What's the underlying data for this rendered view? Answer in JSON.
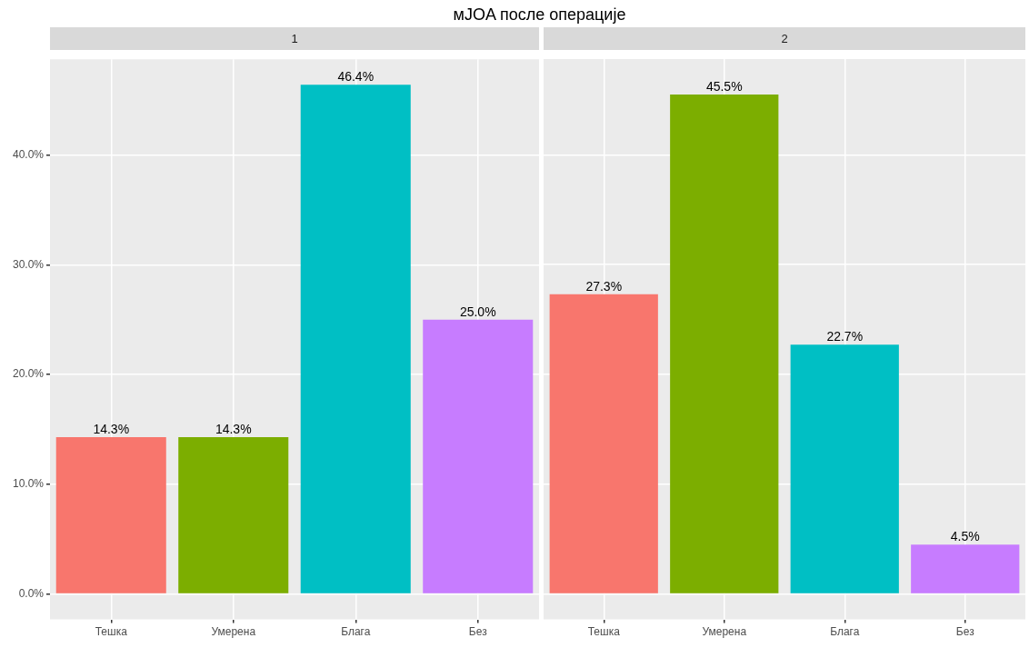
{
  "chart_data": [
    {
      "type": "bar",
      "title": "мJOA после операције",
      "subtitle": "1",
      "categories": [
        "Тешка",
        "Умерена",
        "Блага",
        "Без"
      ],
      "values": [
        14.3,
        14.3,
        46.4,
        25.0
      ],
      "colors": [
        "#f8766d",
        "#7cae00",
        "#00bfc4",
        "#c77cff"
      ],
      "value_labels": [
        "14.3%",
        "14.3%",
        "46.4%",
        "25.0%"
      ],
      "ylim": [
        -2.32,
        48.72
      ],
      "yticks": [
        {
          "value": 0,
          "label": "0.0%"
        },
        {
          "value": 10,
          "label": "10.0%"
        },
        {
          "value": 20,
          "label": "20.0%"
        },
        {
          "value": 30,
          "label": "30.0%"
        },
        {
          "value": 40,
          "label": "40.0%"
        }
      ],
      "grid": true
    },
    {
      "type": "bar",
      "subtitle": "2",
      "categories": [
        "Тешка",
        "Умерена",
        "Блага",
        "Без"
      ],
      "values": [
        27.3,
        45.5,
        22.7,
        4.5
      ],
      "colors": [
        "#f8766d",
        "#7cae00",
        "#00bfc4",
        "#c77cff"
      ],
      "value_labels": [
        "27.3%",
        "45.5%",
        "22.7%",
        "4.5%"
      ],
      "ylim": [
        -2.32,
        48.72
      ],
      "yticks": [
        0,
        10,
        20,
        30,
        40
      ],
      "grid": true,
      "tick_labels": "x"
    }
  ]
}
